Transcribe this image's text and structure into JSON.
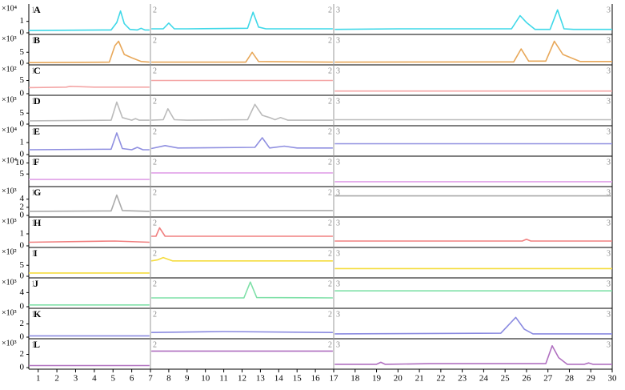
{
  "chart_data": [
    {
      "type": "line",
      "title": "A",
      "scale_label": "×10⁴",
      "segments": [
        {
          "label": "1",
          "xlim": [
            0.5,
            7
          ]
        },
        {
          "label": "2",
          "xlim": [
            7,
            17
          ]
        },
        {
          "label": "3",
          "xlim": [
            17,
            30
          ]
        }
      ],
      "x": [
        0.5,
        4.9,
        5.2,
        5.4,
        5.6,
        5.9,
        6.3,
        6.5,
        6.7,
        6.95,
        7,
        7.05,
        7.7,
        8.0,
        8.3,
        9,
        12.3,
        12.6,
        12.9,
        13.3,
        16.95,
        17,
        17.05,
        20,
        25.3,
        25.7,
        26.0,
        26.4,
        27.1,
        27.45,
        27.75,
        28.2,
        30
      ],
      "series": [
        {
          "color": "#3fd8e8",
          "values": [
            0.2,
            0.25,
            0.9,
            1.9,
            0.8,
            0.3,
            0.25,
            0.4,
            0.25,
            0.25,
            null,
            0.35,
            0.35,
            0.85,
            0.35,
            0.35,
            0.4,
            1.8,
            0.5,
            0.35,
            0.35,
            null,
            0.3,
            0.35,
            0.35,
            1.5,
            0.9,
            0.3,
            0.3,
            2.0,
            0.35,
            0.3,
            0.3
          ]
        }
      ],
      "ylim": [
        0,
        2.3
      ],
      "yticks": [
        0,
        1
      ]
    },
    {
      "type": "line",
      "title": "B",
      "scale_label": "×10³",
      "segments": [
        {
          "label": "1",
          "xlim": [
            0.5,
            7
          ]
        },
        {
          "label": "2",
          "xlim": [
            7,
            17
          ]
        },
        {
          "label": "3",
          "xlim": [
            17,
            30
          ]
        }
      ],
      "x": [
        0.5,
        4.8,
        5.1,
        5.3,
        5.6,
        6.0,
        6.5,
        6.95,
        7,
        7.05,
        12.2,
        12.55,
        12.9,
        16.95,
        17,
        17.05,
        25.4,
        25.75,
        26.1,
        26.9,
        27.3,
        27.7,
        28.5,
        30
      ],
      "series": [
        {
          "color": "#e8a85a",
          "values": [
            0.3,
            0.5,
            8,
            10,
            4,
            2.5,
            0.8,
            0.5,
            null,
            0.5,
            0.5,
            5,
            0.8,
            0.5,
            null,
            0.5,
            0.6,
            6.5,
            1,
            1,
            10,
            4,
            0.8,
            0.8
          ]
        }
      ],
      "ylim": [
        0,
        12
      ],
      "yticks": [
        0,
        5
      ]
    },
    {
      "type": "line",
      "title": "C",
      "scale_label": "×10²",
      "segments": [
        {
          "label": "1",
          "xlim": [
            0.5,
            7
          ]
        },
        {
          "label": "2",
          "xlim": [
            7,
            17
          ]
        },
        {
          "label": "3",
          "xlim": [
            17,
            30
          ]
        }
      ],
      "x": [
        0.5,
        2.5,
        2.7,
        4,
        6.95,
        7,
        7.05,
        16.95,
        17,
        17.05,
        30
      ],
      "series": [
        {
          "color": "#f4a6a6",
          "values": [
            2.3,
            2.5,
            2.8,
            2.5,
            2.5,
            null,
            5,
            5,
            null,
            1,
            1
          ]
        }
      ],
      "ylim": [
        0,
        10
      ],
      "yticks": [
        0,
        5
      ]
    },
    {
      "type": "line",
      "title": "D",
      "scale_label": "×10³",
      "segments": [
        {
          "label": "1",
          "xlim": [
            0.5,
            7
          ]
        },
        {
          "label": "2",
          "xlim": [
            7,
            17
          ]
        },
        {
          "label": "3",
          "xlim": [
            17,
            30
          ]
        }
      ],
      "x": [
        0.5,
        4.9,
        5.2,
        5.5,
        6.0,
        6.2,
        6.4,
        6.95,
        7,
        7.05,
        7.7,
        7.95,
        8.3,
        9,
        12.3,
        12.7,
        13.1,
        13.5,
        13.8,
        14.1,
        14.5,
        16.95,
        17,
        17.05,
        30
      ],
      "series": [
        {
          "color": "#bbbbbb",
          "values": [
            1.5,
            1.8,
            10,
            3,
            1.8,
            2.5,
            1.8,
            1.8,
            null,
            1.8,
            2,
            7,
            2,
            1.8,
            2,
            9,
            4,
            3,
            2,
            3,
            1.8,
            1.8,
            null,
            2,
            2
          ]
        }
      ],
      "ylim": [
        0,
        12
      ],
      "yticks": [
        0,
        5
      ]
    },
    {
      "type": "line",
      "title": "E",
      "scale_label": "×10⁴",
      "segments": [
        {
          "label": "1",
          "xlim": [
            0.5,
            7
          ]
        },
        {
          "label": "2",
          "xlim": [
            7,
            17
          ]
        },
        {
          "label": "3",
          "xlim": [
            17,
            30
          ]
        }
      ],
      "x": [
        0.5,
        4.9,
        5.2,
        5.5,
        6.0,
        6.3,
        6.6,
        6.95,
        7,
        7.05,
        7.8,
        8.5,
        12.7,
        13.1,
        13.5,
        14.3,
        15,
        16.95,
        17,
        17.05,
        30
      ],
      "series": [
        {
          "color": "#8f8fe0",
          "values": [
            0.4,
            0.45,
            1.8,
            0.5,
            0.4,
            0.6,
            0.4,
            0.4,
            null,
            0.5,
            0.75,
            0.55,
            0.6,
            1.4,
            0.55,
            0.7,
            0.55,
            0.55,
            null,
            0.9,
            0.9
          ]
        }
      ],
      "ylim": [
        0,
        2.2
      ],
      "yticks": [
        0,
        1
      ]
    },
    {
      "type": "line",
      "title": "F",
      "scale_label": "×10⁴",
      "segments": [
        {
          "label": "1",
          "xlim": [
            0.5,
            7
          ]
        },
        {
          "label": "2",
          "xlim": [
            7,
            17
          ]
        },
        {
          "label": "3",
          "xlim": [
            17,
            30
          ]
        }
      ],
      "x": [
        0.5,
        6.95,
        7,
        7.05,
        16.95,
        17,
        17.05,
        30
      ],
      "series": [
        {
          "color": "#e0a0e8",
          "values": [
            2.5,
            2.5,
            null,
            5.5,
            5.5,
            null,
            1.5,
            1.5
          ]
        }
      ],
      "ylim": [
        0,
        12
      ],
      "yticks": [
        5,
        10
      ]
    },
    {
      "type": "line",
      "title": "G",
      "scale_label": "×10³",
      "segments": [
        {
          "label": "1",
          "xlim": [
            0.5,
            7
          ]
        },
        {
          "label": "2",
          "xlim": [
            7,
            17
          ]
        },
        {
          "label": "3",
          "xlim": [
            17,
            30
          ]
        }
      ],
      "x": [
        0.5,
        4.9,
        5.2,
        5.5,
        6.95,
        7,
        7.05,
        16.95,
        17,
        17.05,
        30
      ],
      "series": [
        {
          "color": "#aaaaaa",
          "values": [
            1,
            1.1,
            5,
            1.2,
            1,
            null,
            1.2,
            1.2,
            null,
            4.8,
            4.8
          ]
        }
      ],
      "ylim": [
        0,
        6.5
      ],
      "yticks": [
        0,
        2,
        4
      ]
    },
    {
      "type": "line",
      "title": "H",
      "scale_label": "×10³",
      "segments": [
        {
          "label": "1",
          "xlim": [
            0.5,
            7
          ]
        },
        {
          "label": "2",
          "xlim": [
            7,
            17
          ]
        },
        {
          "label": "3",
          "xlim": [
            17,
            30
          ]
        }
      ],
      "x": [
        0.5,
        5.1,
        6.95,
        7,
        7.05,
        7.3,
        7.5,
        7.8,
        16.95,
        17,
        17.05,
        25.8,
        26,
        26.2,
        30
      ],
      "series": [
        {
          "color": "#f08080",
          "values": [
            0.3,
            0.4,
            0.3,
            null,
            0.8,
            0.8,
            1.5,
            0.8,
            0.8,
            null,
            0.4,
            0.4,
            0.55,
            0.4,
            0.4
          ]
        }
      ],
      "ylim": [
        0,
        2.2
      ],
      "yticks": [
        0,
        1
      ]
    },
    {
      "type": "line",
      "title": "I",
      "scale_label": "×10²",
      "segments": [
        {
          "label": "1",
          "xlim": [
            0.5,
            7
          ]
        },
        {
          "label": "2",
          "xlim": [
            7,
            17
          ]
        },
        {
          "label": "3",
          "xlim": [
            17,
            30
          ]
        }
      ],
      "x": [
        0.5,
        6.95,
        7,
        7.05,
        7.4,
        7.7,
        8.2,
        16.95,
        17,
        17.05,
        30
      ],
      "series": [
        {
          "color": "#f5dc3c",
          "values": [
            1.5,
            1.5,
            null,
            7,
            7.5,
            8.5,
            7,
            7,
            null,
            3.5,
            3.5
          ]
        }
      ],
      "ylim": [
        0,
        12
      ],
      "yticks": [
        0,
        5
      ]
    },
    {
      "type": "line",
      "title": "J",
      "scale_label": "×10³",
      "segments": [
        {
          "label": "1",
          "xlim": [
            0.5,
            7
          ]
        },
        {
          "label": "2",
          "xlim": [
            7,
            17
          ]
        },
        {
          "label": "3",
          "xlim": [
            17,
            30
          ]
        }
      ],
      "x": [
        0.5,
        6.95,
        7,
        7.05,
        12.1,
        12.45,
        12.8,
        16.95,
        17,
        17.05,
        30
      ],
      "series": [
        {
          "color": "#7fe0a8",
          "values": [
            0.5,
            0.5,
            null,
            2.5,
            2.5,
            7,
            2.6,
            2.5,
            null,
            4.5,
            4.5
          ]
        }
      ],
      "ylim": [
        0,
        7.5
      ],
      "yticks": [
        0,
        4
      ]
    },
    {
      "type": "line",
      "title": "K",
      "scale_label": "×10³",
      "segments": [
        {
          "label": "1",
          "xlim": [
            0.5,
            7
          ]
        },
        {
          "label": "2",
          "xlim": [
            7,
            17
          ]
        },
        {
          "label": "3",
          "xlim": [
            17,
            30
          ]
        }
      ],
      "x": [
        0.5,
        6.95,
        7,
        7.05,
        11,
        16.95,
        17,
        17.05,
        24.8,
        25.5,
        25.9,
        26.3,
        30
      ],
      "series": [
        {
          "color": "#8a8ae0",
          "values": [
            0.2,
            0.2,
            null,
            0.7,
            0.85,
            0.7,
            null,
            0.5,
            0.6,
            3.0,
            1.2,
            0.5,
            0.5
          ]
        }
      ],
      "ylim": [
        0,
        4
      ],
      "yticks": [
        0,
        2
      ]
    },
    {
      "type": "line",
      "title": "L",
      "scale_label": "×10³",
      "segments": [
        {
          "label": "1",
          "xlim": [
            0.5,
            7
          ]
        },
        {
          "label": "2",
          "xlim": [
            7,
            17
          ]
        },
        {
          "label": "3",
          "xlim": [
            17,
            30
          ]
        }
      ],
      "x": [
        0.5,
        6.95,
        7,
        7.05,
        16.95,
        17,
        17.05,
        19,
        19.2,
        19.4,
        21.5,
        26.9,
        27.2,
        27.5,
        27.9,
        28.7,
        28.9,
        29.1,
        30
      ],
      "series": [
        {
          "color": "#b070c0",
          "values": [
            0.3,
            0.3,
            null,
            2.5,
            2.5,
            null,
            0.5,
            0.5,
            0.8,
            0.5,
            0.6,
            0.6,
            3.3,
            1.5,
            0.5,
            0.5,
            0.7,
            0.5,
            0.5
          ]
        }
      ],
      "ylim": [
        0,
        4
      ],
      "yticks": [
        0,
        2
      ],
      "xticks": [
        1,
        2,
        3,
        4,
        5,
        6,
        7,
        8,
        9,
        10,
        11,
        12,
        13,
        14,
        15,
        16,
        17,
        18,
        19,
        20,
        21,
        22,
        23,
        24,
        25,
        26,
        27,
        28,
        29,
        30
      ]
    }
  ]
}
